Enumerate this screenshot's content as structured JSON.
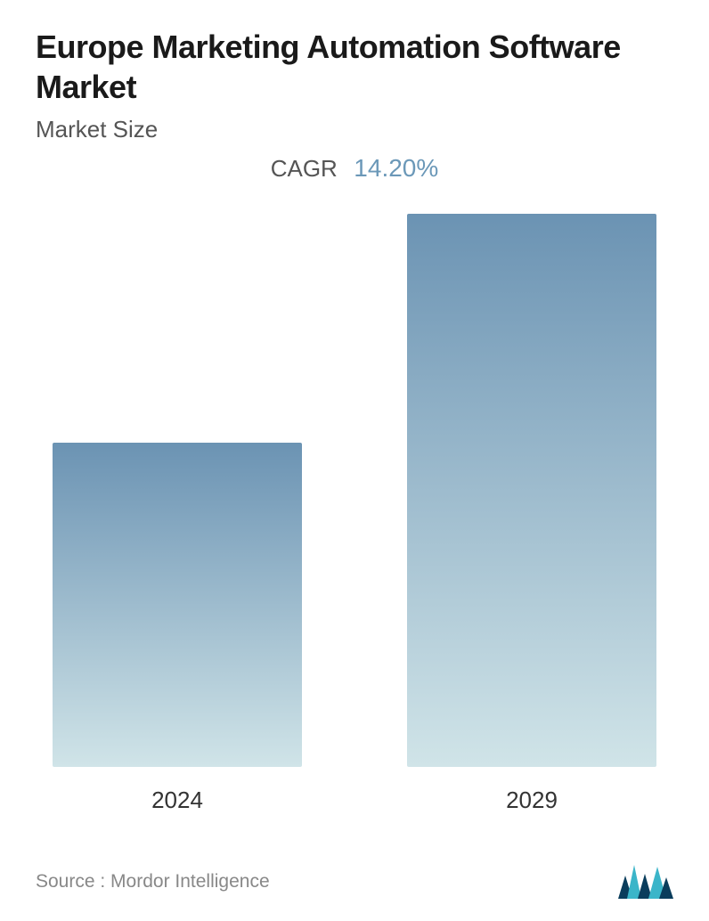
{
  "header": {
    "title": "Europe Marketing Automation Software Market",
    "subtitle": "Market Size",
    "cagr_label": "CAGR",
    "cagr_value": "14.20%"
  },
  "chart": {
    "type": "bar",
    "bars": [
      {
        "label": "2024",
        "height_pct": 54
      },
      {
        "label": "2029",
        "height_pct": 100
      }
    ],
    "bar_gradient_top": "#6b93b3",
    "bar_gradient_bottom": "#d0e4e8",
    "background_color": "#ffffff"
  },
  "footer": {
    "source_text": "Source :   Mordor Intelligence",
    "logo_colors": {
      "dark": "#0a3d5c",
      "light": "#3bb5c9"
    }
  },
  "colors": {
    "title_color": "#1a1a1a",
    "subtitle_color": "#555555",
    "cagr_value_color": "#6b98b8",
    "bar_label_color": "#333333",
    "source_color": "#888888"
  },
  "typography": {
    "title_fontsize": 36,
    "subtitle_fontsize": 26,
    "cagr_label_fontsize": 26,
    "cagr_value_fontsize": 28,
    "bar_label_fontsize": 26,
    "source_fontsize": 21
  }
}
